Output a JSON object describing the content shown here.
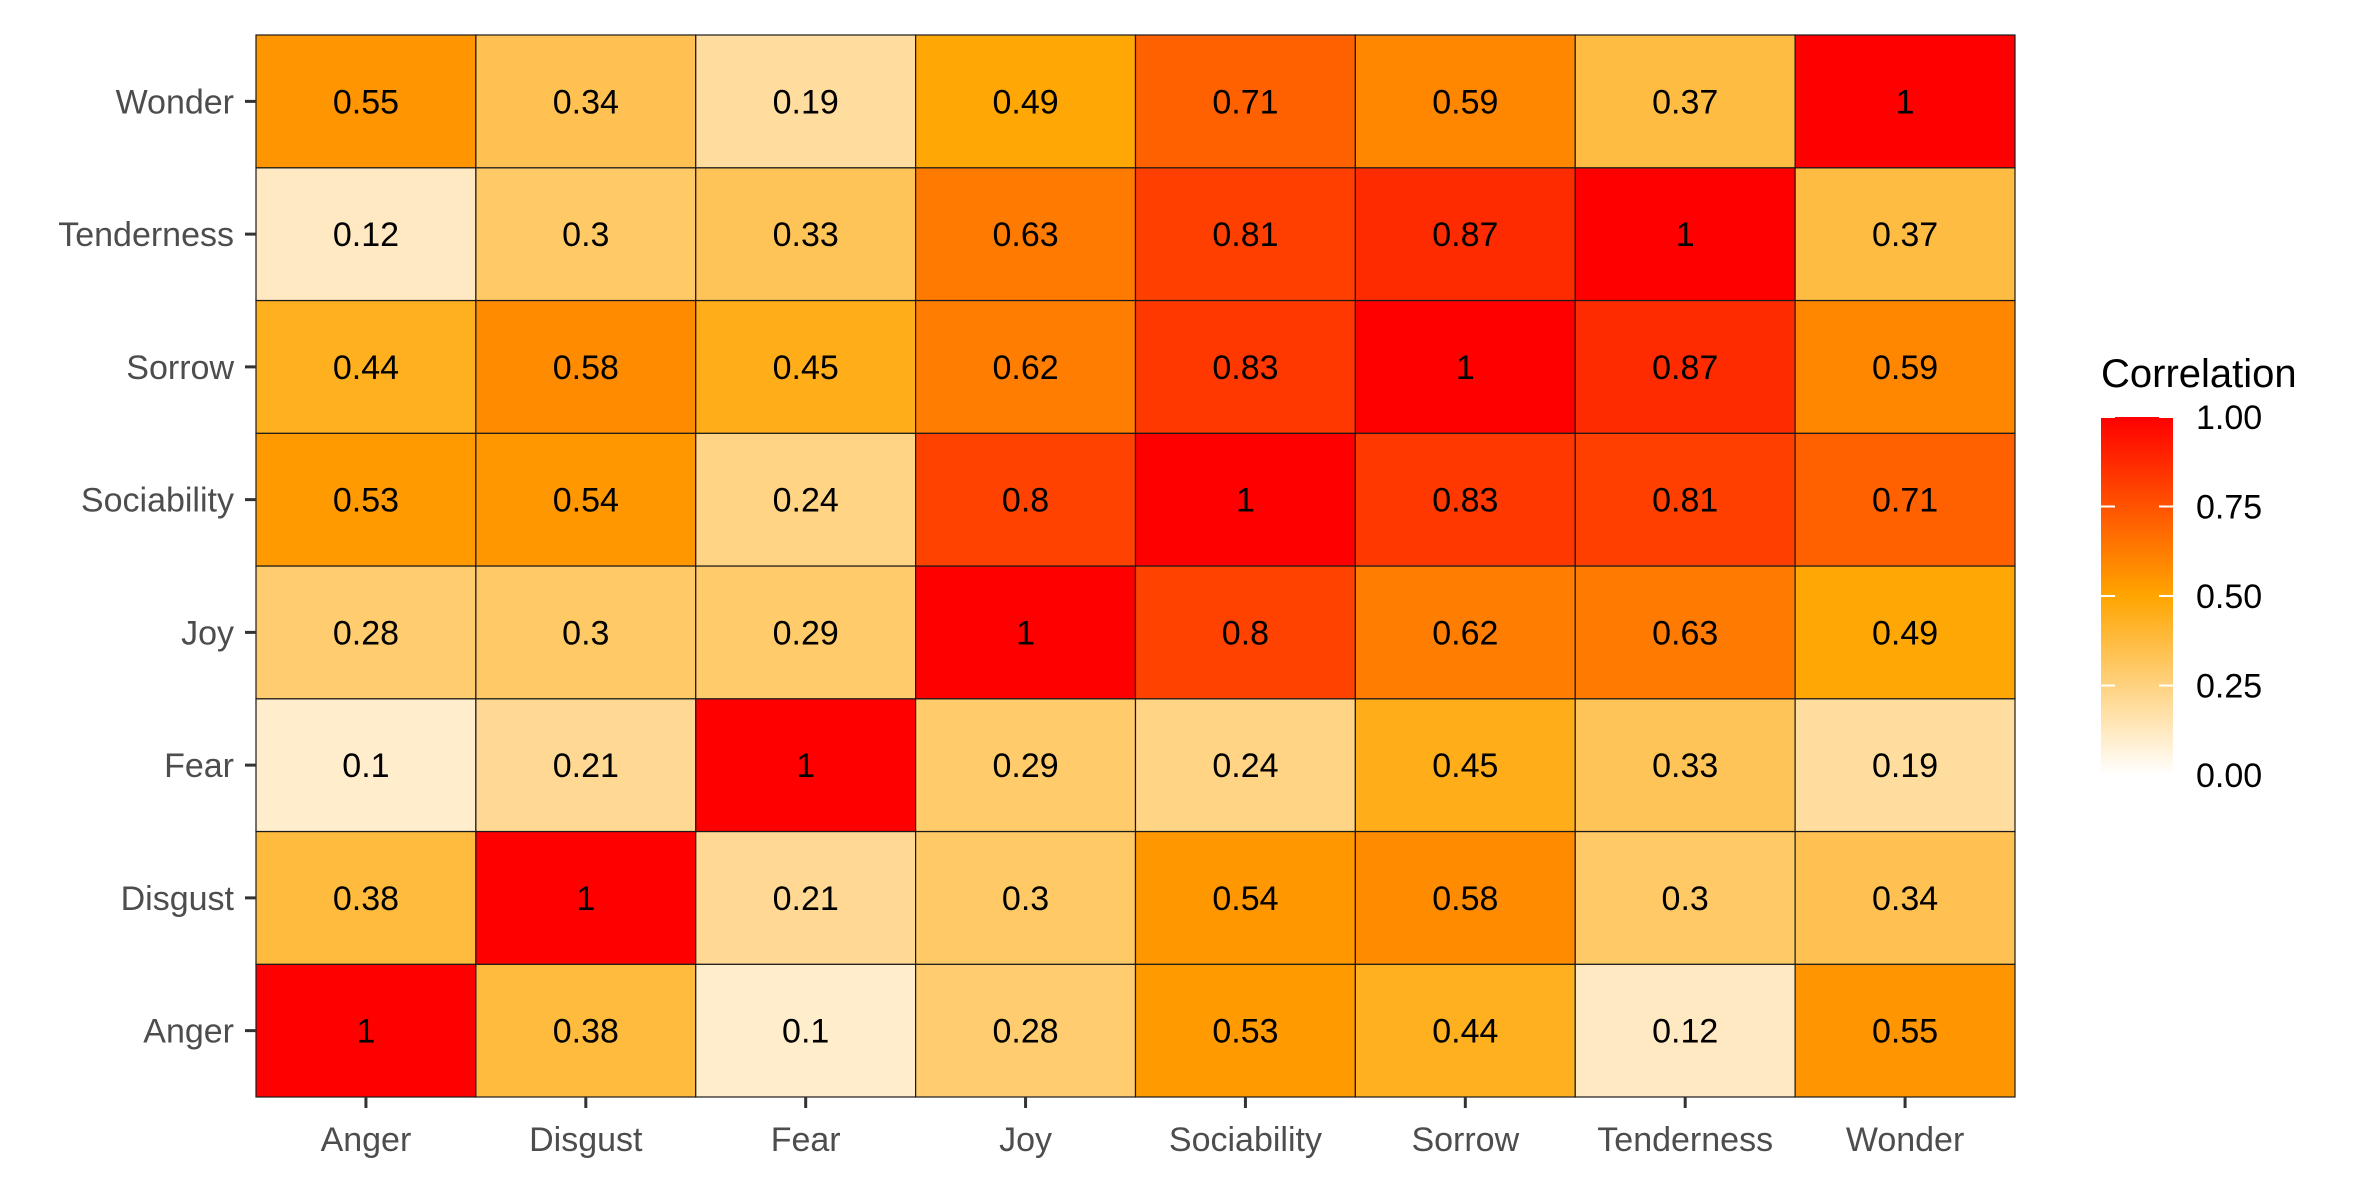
{
  "chart_data": {
    "type": "heatmap",
    "title": "",
    "xlabel": "",
    "ylabel": "",
    "x_categories": [
      "Anger",
      "Disgust",
      "Fear",
      "Joy",
      "Sociability",
      "Sorrow",
      "Tenderness",
      "Wonder"
    ],
    "y_categories": [
      "Anger",
      "Disgust",
      "Fear",
      "Joy",
      "Sociability",
      "Sorrow",
      "Tenderness",
      "Wonder"
    ],
    "values": [
      [
        1,
        0.38,
        0.1,
        0.28,
        0.53,
        0.44,
        0.12,
        0.55
      ],
      [
        0.38,
        1,
        0.21,
        0.3,
        0.54,
        0.58,
        0.3,
        0.34
      ],
      [
        0.1,
        0.21,
        1,
        0.29,
        0.24,
        0.45,
        0.33,
        0.19
      ],
      [
        0.28,
        0.3,
        0.29,
        1,
        0.8,
        0.62,
        0.63,
        0.49
      ],
      [
        0.53,
        0.54,
        0.24,
        0.8,
        1,
        0.83,
        0.81,
        0.71
      ],
      [
        0.44,
        0.58,
        0.45,
        0.62,
        0.83,
        1,
        0.87,
        0.59
      ],
      [
        0.12,
        0.3,
        0.33,
        0.63,
        0.81,
        0.87,
        1,
        0.37
      ],
      [
        0.55,
        0.34,
        0.19,
        0.49,
        0.71,
        0.59,
        0.37,
        1
      ]
    ],
    "value_labels": [
      [
        "1",
        "0.38",
        "0.1",
        "0.28",
        "0.53",
        "0.44",
        "0.12",
        "0.55"
      ],
      [
        "0.38",
        "1",
        "0.21",
        "0.3",
        "0.54",
        "0.58",
        "0.3",
        "0.34"
      ],
      [
        "0.1",
        "0.21",
        "1",
        "0.29",
        "0.24",
        "0.45",
        "0.33",
        "0.19"
      ],
      [
        "0.28",
        "0.3",
        "0.29",
        "1",
        "0.8",
        "0.62",
        "0.63",
        "0.49"
      ],
      [
        "0.53",
        "0.54",
        "0.24",
        "0.8",
        "1",
        "0.83",
        "0.81",
        "0.71"
      ],
      [
        "0.44",
        "0.58",
        "0.45",
        "0.62",
        "0.83",
        "1",
        "0.87",
        "0.59"
      ],
      [
        "0.12",
        "0.3",
        "0.33",
        "0.63",
        "0.81",
        "0.87",
        "1",
        "0.37"
      ],
      [
        "0.55",
        "0.34",
        "0.19",
        "0.49",
        "0.71",
        "0.59",
        "0.37",
        "1"
      ]
    ],
    "color_scale": {
      "low": "#ffffff",
      "mid": "#ffa500",
      "high": "#ff0000",
      "midpoint": 0.5,
      "limits": [
        0,
        1
      ]
    },
    "legend": {
      "title": "Correlation",
      "position": "right",
      "breaks": [
        1.0,
        0.75,
        0.5,
        0.25,
        0.0
      ],
      "labels": [
        "1.00",
        "0.75",
        "0.50",
        "0.25",
        "0.00"
      ]
    },
    "grid": false
  }
}
